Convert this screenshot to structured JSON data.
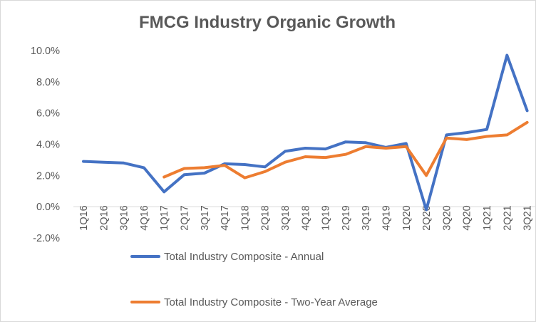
{
  "chart_data": {
    "type": "line",
    "title": "FMCG Industry Organic Growth",
    "categories": [
      "1Q16",
      "2Q16",
      "3Q16",
      "4Q16",
      "1Q17",
      "2Q17",
      "3Q17",
      "4Q17",
      "1Q18",
      "2Q18",
      "3Q18",
      "4Q18",
      "1Q19",
      "2Q19",
      "3Q19",
      "4Q19",
      "1Q20",
      "2Q20",
      "3Q20",
      "4Q20",
      "1Q21",
      "2Q21",
      "3Q21"
    ],
    "series": [
      {
        "name": "Total Industry Composite - Annual",
        "color": "#4472C4",
        "values": [
          2.9,
          2.85,
          2.8,
          2.5,
          0.95,
          2.05,
          2.15,
          2.75,
          2.7,
          2.55,
          3.55,
          3.75,
          3.7,
          4.15,
          4.1,
          3.8,
          4.05,
          -0.2,
          4.6,
          4.75,
          4.95,
          9.7,
          6.15
        ]
      },
      {
        "name": "Total Industry Composite - Two-Year Average",
        "color": "#ED7D31",
        "values": [
          null,
          null,
          null,
          null,
          1.9,
          2.45,
          2.5,
          2.65,
          1.85,
          2.25,
          2.85,
          3.2,
          3.15,
          3.35,
          3.85,
          3.75,
          3.85,
          2.0,
          4.4,
          4.3,
          4.5,
          4.6,
          5.4
        ]
      }
    ],
    "yticks": [
      "10.0%",
      "8.0%",
      "6.0%",
      "4.0%",
      "2.0%",
      "0.0%",
      "-2.0%"
    ],
    "ylim": [
      -2,
      10
    ],
    "yunit": "%",
    "grid": false,
    "legend_position": "bottom"
  }
}
